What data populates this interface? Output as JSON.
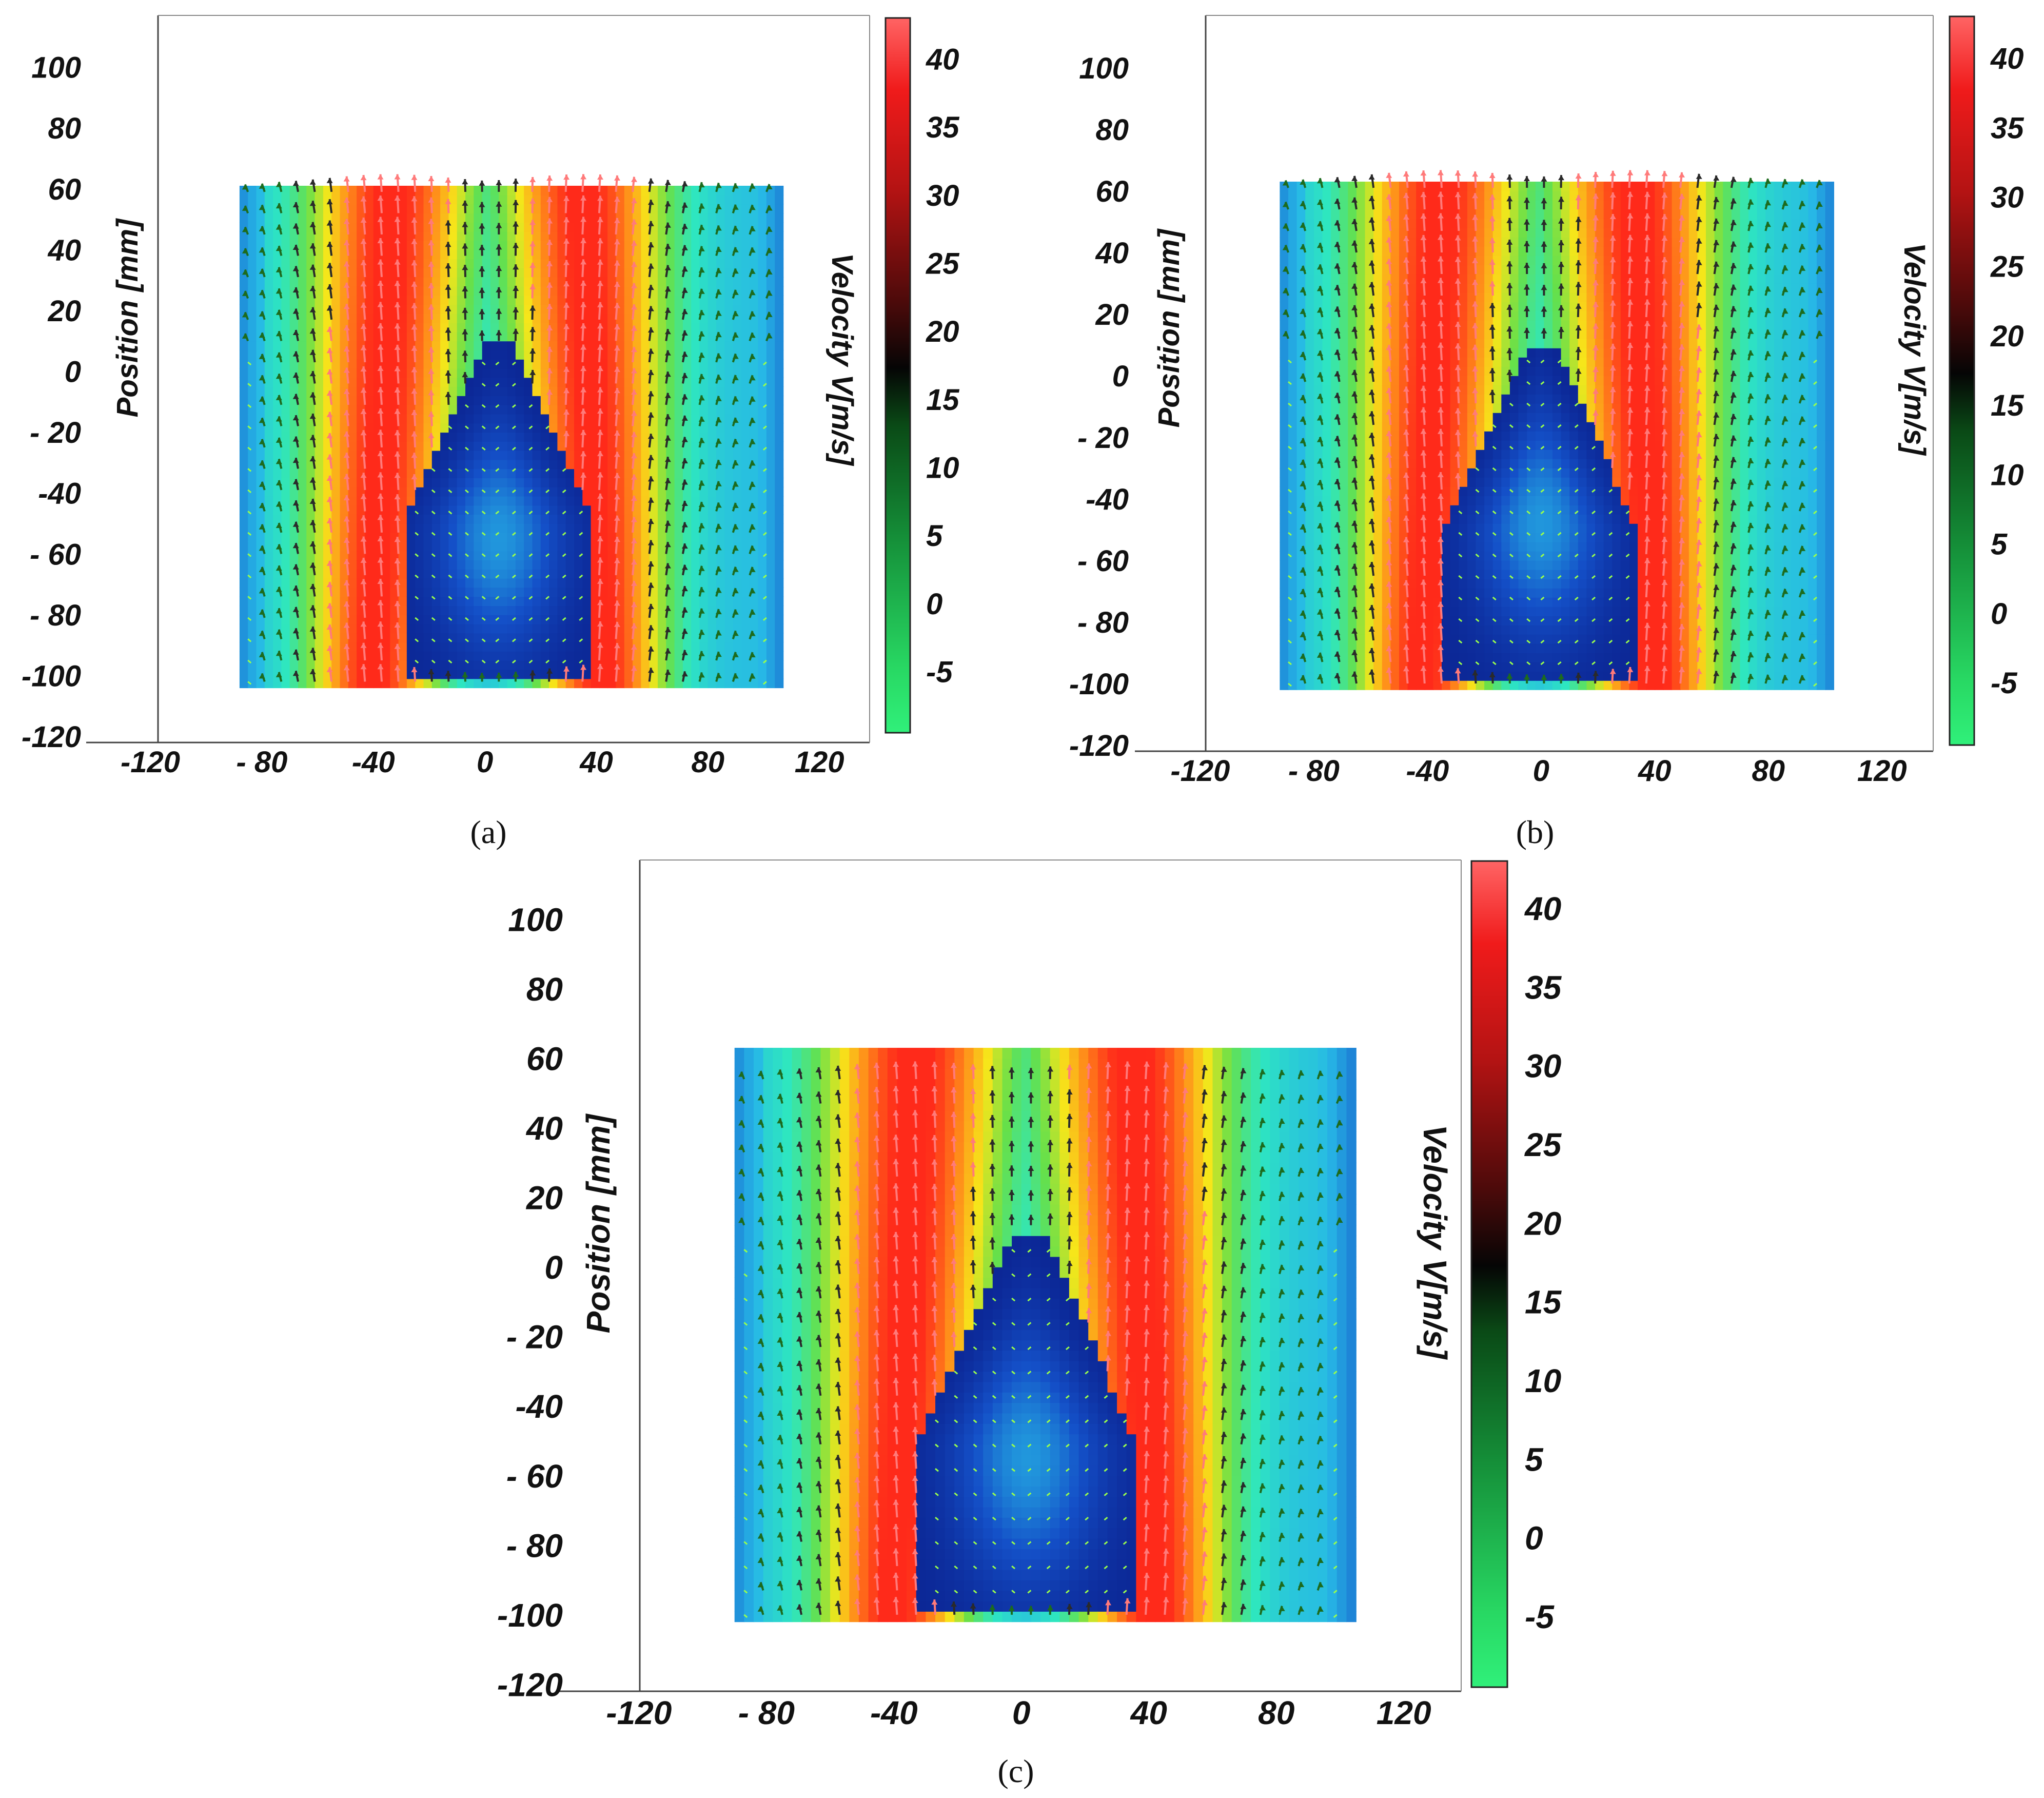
{
  "chart_data": [
    {
      "panel": "(a)",
      "type": "heatmap",
      "ylabel": "Position [mm]",
      "colorbar_label": "Velocity V[m/s]",
      "xticks": [
        "-120",
        "- 80",
        "-40",
        "0",
        "40",
        "80",
        "120"
      ],
      "xtick_values": [
        -120,
        -80,
        -40,
        0,
        40,
        80,
        120
      ],
      "yticks": [
        "100",
        "80",
        "60",
        "40",
        "20",
        "0",
        "- 20",
        "-40",
        "- 60",
        "- 80",
        "-100",
        "-120"
      ],
      "ytick_values": [
        100,
        80,
        60,
        40,
        20,
        0,
        -20,
        -40,
        -60,
        -80,
        -100,
        -120
      ],
      "colorbar_ticks": [
        "40",
        "35",
        "30",
        "25",
        "20",
        "15",
        "10",
        "5",
        "0",
        "-5"
      ],
      "colorbar_values": [
        40,
        35,
        30,
        25,
        20,
        15,
        10,
        5,
        0,
        -5
      ],
      "xlim": [
        -143,
        138
      ],
      "ylim": [
        -122,
        117
      ],
      "colorbar_range": [
        -9.5,
        43
      ],
      "field_extent": {
        "x": [
          -88,
          106
        ],
        "y": [
          -104,
          61
        ]
      },
      "jet_centers": [
        -40,
        42
      ],
      "recirculation_center": [
        5,
        -55
      ]
    },
    {
      "panel": "(b)",
      "type": "heatmap",
      "ylabel": "Position [mm]",
      "colorbar_label": "Velocity V[m/s]",
      "xticks": [
        "-120",
        "- 80",
        "-40",
        "0",
        "40",
        "80",
        "120"
      ],
      "xtick_values": [
        -120,
        -80,
        -40,
        0,
        40,
        80,
        120
      ],
      "yticks": [
        "100",
        "80",
        "60",
        "40",
        "20",
        "0",
        "- 20",
        "-40",
        "- 60",
        "- 80",
        "-100",
        "-120"
      ],
      "ytick_values": [
        100,
        80,
        60,
        40,
        20,
        0,
        -20,
        -40,
        -60,
        -80,
        -100,
        -120
      ],
      "colorbar_ticks": [
        "40",
        "35",
        "30",
        "25",
        "20",
        "15",
        "10",
        "5",
        "0",
        "-5"
      ],
      "colorbar_values": [
        40,
        35,
        30,
        25,
        20,
        15,
        10,
        5,
        0,
        -5
      ],
      "xlim": [
        -143,
        138
      ],
      "ylim": [
        -122,
        117
      ],
      "colorbar_range": [
        -9.5,
        43
      ],
      "field_extent": {
        "x": [
          -92,
          102
        ],
        "y": [
          -102,
          63
        ]
      },
      "jet_centers": [
        -42,
        40
      ],
      "recirculation_center": [
        0,
        -48
      ]
    },
    {
      "panel": "(c)",
      "type": "heatmap",
      "ylabel": "Position [mm]",
      "colorbar_label": "Velocity V[m/s]",
      "xticks": [
        "-120",
        "- 80",
        "-40",
        "0",
        "40",
        "80",
        "120"
      ],
      "xtick_values": [
        -120,
        -80,
        -40,
        0,
        40,
        80,
        120
      ],
      "yticks": [
        "100",
        "80",
        "60",
        "40",
        "20",
        "0",
        "- 20",
        "-40",
        "- 60",
        "- 80",
        "-100",
        "-120"
      ],
      "ytick_values": [
        100,
        80,
        60,
        40,
        20,
        0,
        -20,
        -40,
        -60,
        -80,
        -100,
        -120
      ],
      "colorbar_ticks": [
        "40",
        "35",
        "30",
        "25",
        "20",
        "15",
        "10",
        "5",
        "0",
        "-5"
      ],
      "colorbar_values": [
        40,
        35,
        30,
        25,
        20,
        15,
        10,
        5,
        0,
        -5
      ],
      "xlim": [
        -145,
        138
      ],
      "ylim": [
        -122,
        117
      ],
      "colorbar_range": [
        -9.5,
        43
      ],
      "field_extent": {
        "x": [
          -90,
          103
        ],
        "y": [
          -102,
          62
        ]
      },
      "jet_centers": [
        -40,
        42
      ],
      "recirculation_center": [
        2,
        -55
      ]
    }
  ],
  "colormap": [
    "#30f07a",
    "#1aa043",
    "#0a5a1c",
    "#050505",
    "#6e0f0f",
    "#c41414",
    "#f21d1d",
    "#ff5a5a"
  ],
  "field_colormap": [
    "#0a1f8c",
    "#1450c8",
    "#27b8e6",
    "#2ee6c0",
    "#66e04a",
    "#f6e61a",
    "#ff8c1a",
    "#ff2a1a"
  ]
}
